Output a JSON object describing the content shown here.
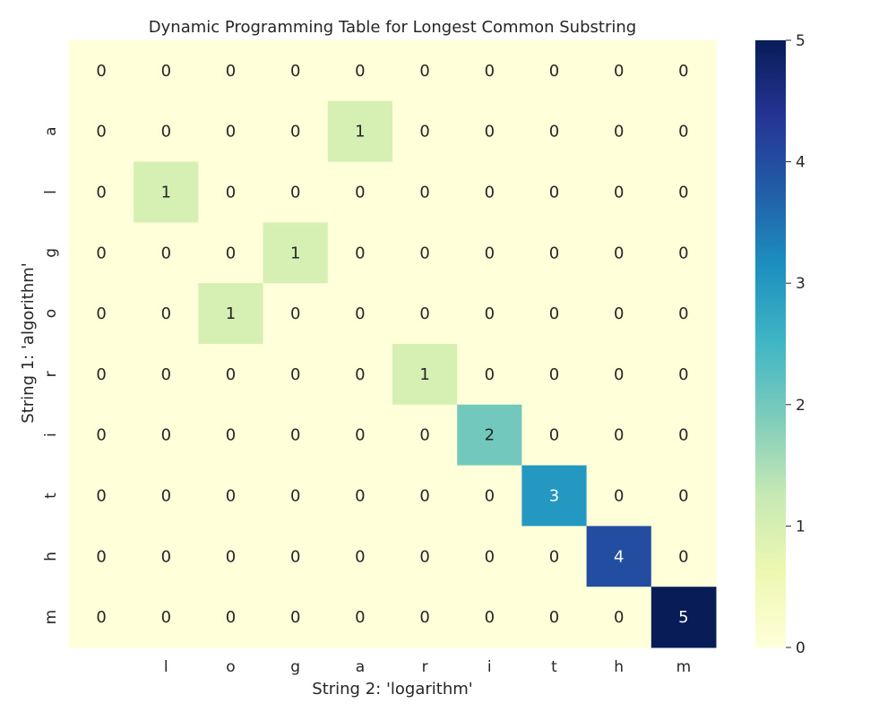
{
  "chart_data": {
    "type": "heatmap",
    "title": "Dynamic Programming Table for Longest Common Substring",
    "xlabel": "String 2: 'logarithm'",
    "ylabel": "String 1: 'algorithm'",
    "x_tick_labels": [
      "",
      "l",
      "o",
      "g",
      "a",
      "r",
      "i",
      "t",
      "h",
      "m"
    ],
    "y_tick_labels": [
      "",
      "a",
      "l",
      "g",
      "o",
      "r",
      "i",
      "t",
      "h",
      "m"
    ],
    "values": [
      [
        0,
        0,
        0,
        0,
        0,
        0,
        0,
        0,
        0,
        0
      ],
      [
        0,
        0,
        0,
        0,
        1,
        0,
        0,
        0,
        0,
        0
      ],
      [
        0,
        1,
        0,
        0,
        0,
        0,
        0,
        0,
        0,
        0
      ],
      [
        0,
        0,
        0,
        1,
        0,
        0,
        0,
        0,
        0,
        0
      ],
      [
        0,
        0,
        1,
        0,
        0,
        0,
        0,
        0,
        0,
        0
      ],
      [
        0,
        0,
        0,
        0,
        0,
        1,
        0,
        0,
        0,
        0
      ],
      [
        0,
        0,
        0,
        0,
        0,
        0,
        2,
        0,
        0,
        0
      ],
      [
        0,
        0,
        0,
        0,
        0,
        0,
        0,
        3,
        0,
        0
      ],
      [
        0,
        0,
        0,
        0,
        0,
        0,
        0,
        0,
        4,
        0
      ],
      [
        0,
        0,
        0,
        0,
        0,
        0,
        0,
        0,
        0,
        5
      ]
    ],
    "colormap": "YlGnBu",
    "vmin": 0,
    "vmax": 5,
    "colorbar_ticks": [
      0,
      1,
      2,
      3,
      4,
      5
    ],
    "annotations": true,
    "grid": false
  }
}
